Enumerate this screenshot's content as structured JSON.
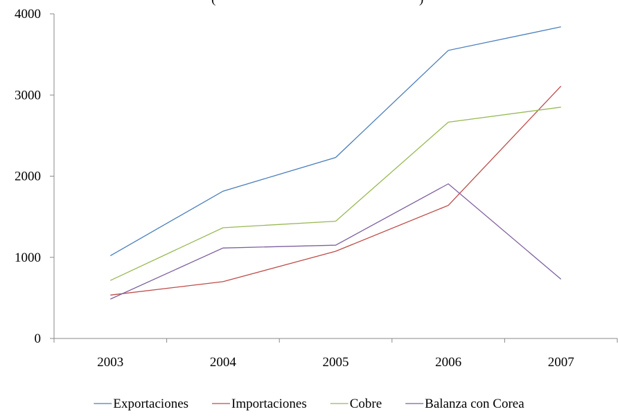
{
  "chart_data": {
    "type": "line",
    "title": "(",
    "title_suffix": ")",
    "categories": [
      "2003",
      "2004",
      "2005",
      "2006",
      "2007"
    ],
    "ylim": [
      0,
      4000
    ],
    "yticks": [
      "0",
      "1000",
      "2000",
      "3000",
      "4000"
    ],
    "grid": false,
    "legend_position": "bottom",
    "series": [
      {
        "name": "Exportaciones",
        "color": "#4a7ebb",
        "values": [
          1020,
          1815,
          2230,
          3550,
          3840
        ]
      },
      {
        "name": "Importaciones",
        "color": "#be4b48",
        "values": [
          535,
          700,
          1075,
          1640,
          3110
        ]
      },
      {
        "name": "Cobre",
        "color": "#98b954",
        "values": [
          715,
          1365,
          1445,
          2665,
          2850
        ]
      },
      {
        "name": "Balanza con Corea",
        "color": "#7d60a0",
        "values": [
          485,
          1115,
          1150,
          1905,
          730
        ]
      }
    ]
  }
}
